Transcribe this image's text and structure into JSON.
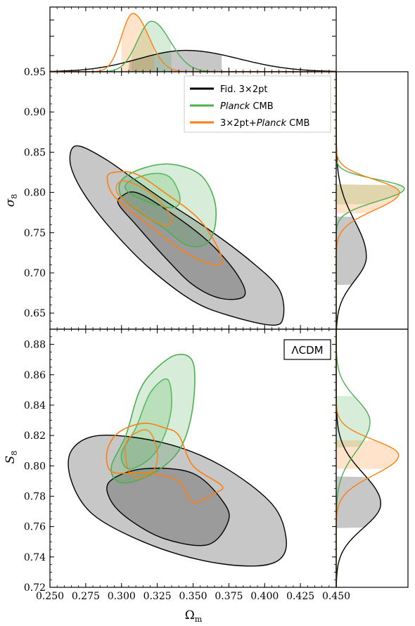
{
  "chart_data": {
    "type": "corner_plot",
    "model_label": "ΛCDM",
    "colors": {
      "fid": "#000000",
      "planck": "#4caf50",
      "combined": "#ff7f0e"
    },
    "legend": [
      {
        "key": "fid",
        "label": "Fid. 3×2pt"
      },
      {
        "key": "planck",
        "label": "Planck CMB",
        "italic_word": "Planck"
      },
      {
        "key": "combined",
        "label": "3×2pt+Planck CMB",
        "italic_word": "Planck"
      }
    ],
    "x_axis": {
      "label": "Ωm",
      "lim": [
        0.25,
        0.45
      ],
      "ticks": [
        0.25,
        0.275,
        0.3,
        0.325,
        0.35,
        0.375,
        0.4,
        0.425,
        0.45
      ],
      "tick_labels": [
        "0.250",
        "0.275",
        "0.300",
        "0.325",
        "0.350",
        "0.375",
        "0.400",
        "0.425",
        "0.450"
      ]
    },
    "sigma8_axis": {
      "label": "σ8",
      "lim": [
        0.63,
        0.95
      ],
      "ticks": [
        0.65,
        0.7,
        0.75,
        0.8,
        0.85,
        0.9,
        0.95
      ],
      "tick_labels": [
        "0.65",
        "0.70",
        "0.75",
        "0.80",
        "0.85",
        "0.90",
        "0.95"
      ]
    },
    "S8_axis": {
      "label": "S8",
      "lim": [
        0.72,
        0.89
      ],
      "ticks": [
        0.72,
        0.74,
        0.76,
        0.78,
        0.8,
        0.82,
        0.84,
        0.86,
        0.88
      ],
      "tick_labels": [
        "0.72",
        "0.74",
        "0.76",
        "0.78",
        "0.80",
        "0.82",
        "0.84",
        "0.86",
        "0.88"
      ]
    },
    "marginals": {
      "omega_m": [
        {
          "key": "fid",
          "peak": 0.345,
          "sigma_left": 0.033,
          "sigma_right": 0.037,
          "band": [
            0.305,
            0.37
          ],
          "amp": 0.33
        },
        {
          "key": "planck",
          "peak": 0.321,
          "sigma_left": 0.01,
          "sigma_right": 0.013,
          "band": [
            0.307,
            0.335
          ],
          "amp": 0.78
        },
        {
          "key": "combined",
          "peak": 0.308,
          "sigma_left": 0.008,
          "sigma_right": 0.011,
          "band": [
            0.3,
            0.323
          ],
          "amp": 0.9
        }
      ],
      "sigma8": [
        {
          "key": "fid",
          "peak": 0.72,
          "sigma_low": 0.03,
          "sigma_high": 0.045,
          "band": [
            0.685,
            0.77
          ],
          "amp": 0.42
        },
        {
          "key": "planck",
          "peak": 0.805,
          "sigma_low": 0.016,
          "sigma_high": 0.011,
          "band": [
            0.785,
            0.81
          ],
          "amp": 0.95
        },
        {
          "key": "combined",
          "peak": 0.8,
          "sigma_low": 0.022,
          "sigma_high": 0.016,
          "band": [
            0.774,
            0.81
          ],
          "amp": 0.88
        }
      ],
      "S8": [
        {
          "key": "fid",
          "peak": 0.775,
          "sigma_low": 0.016,
          "sigma_high": 0.02,
          "band": [
            0.759,
            0.793
          ],
          "amp": 0.62
        },
        {
          "key": "planck",
          "peak": 0.829,
          "sigma_low": 0.019,
          "sigma_high": 0.015,
          "band": [
            0.812,
            0.846
          ],
          "amp": 0.47
        },
        {
          "key": "combined",
          "peak": 0.807,
          "sigma_low": 0.013,
          "sigma_high": 0.01,
          "band": [
            0.798,
            0.817
          ],
          "amp": 0.87
        }
      ]
    },
    "contours": {
      "sigma8": [
        {
          "key": "fid",
          "level": "outer",
          "points": [
            [
              0.265,
              0.853
            ],
            [
              0.272,
              0.857
            ],
            [
              0.29,
              0.84
            ],
            [
              0.31,
              0.815
            ],
            [
              0.33,
              0.79
            ],
            [
              0.36,
              0.755
            ],
            [
              0.39,
              0.715
            ],
            [
              0.41,
              0.68
            ],
            [
              0.413,
              0.645
            ],
            [
              0.405,
              0.635
            ],
            [
              0.375,
              0.647
            ],
            [
              0.35,
              0.665
            ],
            [
              0.32,
              0.705
            ],
            [
              0.295,
              0.75
            ],
            [
              0.275,
              0.795
            ],
            [
              0.265,
              0.83
            ]
          ]
        },
        {
          "key": "fid",
          "level": "inner",
          "points": [
            [
              0.3,
              0.795
            ],
            [
              0.31,
              0.8
            ],
            [
              0.33,
              0.78
            ],
            [
              0.36,
              0.74
            ],
            [
              0.38,
              0.7
            ],
            [
              0.386,
              0.672
            ],
            [
              0.37,
              0.668
            ],
            [
              0.35,
              0.685
            ],
            [
              0.33,
              0.72
            ],
            [
              0.31,
              0.76
            ],
            [
              0.298,
              0.785
            ]
          ]
        },
        {
          "key": "planck",
          "level": "outer",
          "points": [
            [
              0.3,
              0.815
            ],
            [
              0.315,
              0.83
            ],
            [
              0.335,
              0.835
            ],
            [
              0.355,
              0.822
            ],
            [
              0.365,
              0.79
            ],
            [
              0.365,
              0.755
            ],
            [
              0.358,
              0.735
            ],
            [
              0.345,
              0.735
            ],
            [
              0.33,
              0.755
            ],
            [
              0.313,
              0.775
            ],
            [
              0.3,
              0.795
            ]
          ]
        },
        {
          "key": "planck",
          "level": "inner",
          "points": [
            [
              0.304,
              0.812
            ],
            [
              0.32,
              0.823
            ],
            [
              0.333,
              0.82
            ],
            [
              0.34,
              0.8
            ],
            [
              0.34,
              0.785
            ],
            [
              0.333,
              0.781
            ],
            [
              0.32,
              0.787
            ],
            [
              0.305,
              0.8
            ]
          ]
        },
        {
          "key": "combined",
          "level": "outer",
          "points": [
            [
              0.29,
              0.818
            ],
            [
              0.295,
              0.825
            ],
            [
              0.31,
              0.823
            ],
            [
              0.33,
              0.8
            ],
            [
              0.355,
              0.765
            ],
            [
              0.37,
              0.72
            ],
            [
              0.365,
              0.71
            ],
            [
              0.345,
              0.725
            ],
            [
              0.315,
              0.765
            ],
            [
              0.295,
              0.795
            ]
          ]
        },
        {
          "key": "combined",
          "level": "inner",
          "points": [
            [
              0.297,
              0.81
            ],
            [
              0.303,
              0.814
            ],
            [
              0.318,
              0.802
            ],
            [
              0.332,
              0.778
            ],
            [
              0.335,
              0.762
            ],
            [
              0.325,
              0.762
            ],
            [
              0.31,
              0.78
            ],
            [
              0.298,
              0.797
            ]
          ]
        }
      ],
      "S8": [
        {
          "key": "fid",
          "level": "outer",
          "points": [
            [
              0.265,
              0.81
            ],
            [
              0.285,
              0.82
            ],
            [
              0.33,
              0.815
            ],
            [
              0.37,
              0.8
            ],
            [
              0.405,
              0.775
            ],
            [
              0.415,
              0.752
            ],
            [
              0.41,
              0.738
            ],
            [
              0.39,
              0.734
            ],
            [
              0.355,
              0.738
            ],
            [
              0.315,
              0.75
            ],
            [
              0.28,
              0.768
            ],
            [
              0.265,
              0.79
            ]
          ]
        },
        {
          "key": "fid",
          "level": "inner",
          "points": [
            [
              0.292,
              0.79
            ],
            [
              0.315,
              0.798
            ],
            [
              0.35,
              0.795
            ],
            [
              0.372,
              0.775
            ],
            [
              0.374,
              0.762
            ],
            [
              0.36,
              0.748
            ],
            [
              0.33,
              0.752
            ],
            [
              0.305,
              0.765
            ],
            [
              0.292,
              0.778
            ]
          ]
        },
        {
          "key": "planck",
          "level": "outer",
          "points": [
            [
              0.293,
              0.8
            ],
            [
              0.303,
              0.82
            ],
            [
              0.312,
              0.848
            ],
            [
              0.322,
              0.862
            ],
            [
              0.338,
              0.873
            ],
            [
              0.35,
              0.868
            ],
            [
              0.35,
              0.84
            ],
            [
              0.343,
              0.815
            ],
            [
              0.33,
              0.8
            ],
            [
              0.31,
              0.79
            ],
            [
              0.297,
              0.79
            ]
          ]
        },
        {
          "key": "planck",
          "level": "inner",
          "points": [
            [
              0.3,
              0.808
            ],
            [
              0.31,
              0.825
            ],
            [
              0.32,
              0.848
            ],
            [
              0.332,
              0.857
            ],
            [
              0.335,
              0.84
            ],
            [
              0.33,
              0.82
            ],
            [
              0.32,
              0.805
            ],
            [
              0.305,
              0.798
            ]
          ]
        },
        {
          "key": "combined",
          "level": "outer",
          "points": [
            [
              0.29,
              0.81
            ],
            [
              0.298,
              0.822
            ],
            [
              0.315,
              0.828
            ],
            [
              0.33,
              0.825
            ],
            [
              0.34,
              0.82
            ],
            [
              0.35,
              0.8
            ],
            [
              0.37,
              0.787
            ],
            [
              0.365,
              0.782
            ],
            [
              0.35,
              0.776
            ],
            [
              0.34,
              0.79
            ],
            [
              0.32,
              0.795
            ],
            [
              0.305,
              0.795
            ],
            [
              0.292,
              0.797
            ]
          ]
        },
        {
          "key": "combined",
          "level": "inner",
          "points": [
            [
              0.303,
              0.815
            ],
            [
              0.313,
              0.823
            ],
            [
              0.32,
              0.822
            ],
            [
              0.325,
              0.81
            ],
            [
              0.323,
              0.798
            ],
            [
              0.313,
              0.792
            ],
            [
              0.305,
              0.797
            ]
          ]
        }
      ]
    }
  }
}
